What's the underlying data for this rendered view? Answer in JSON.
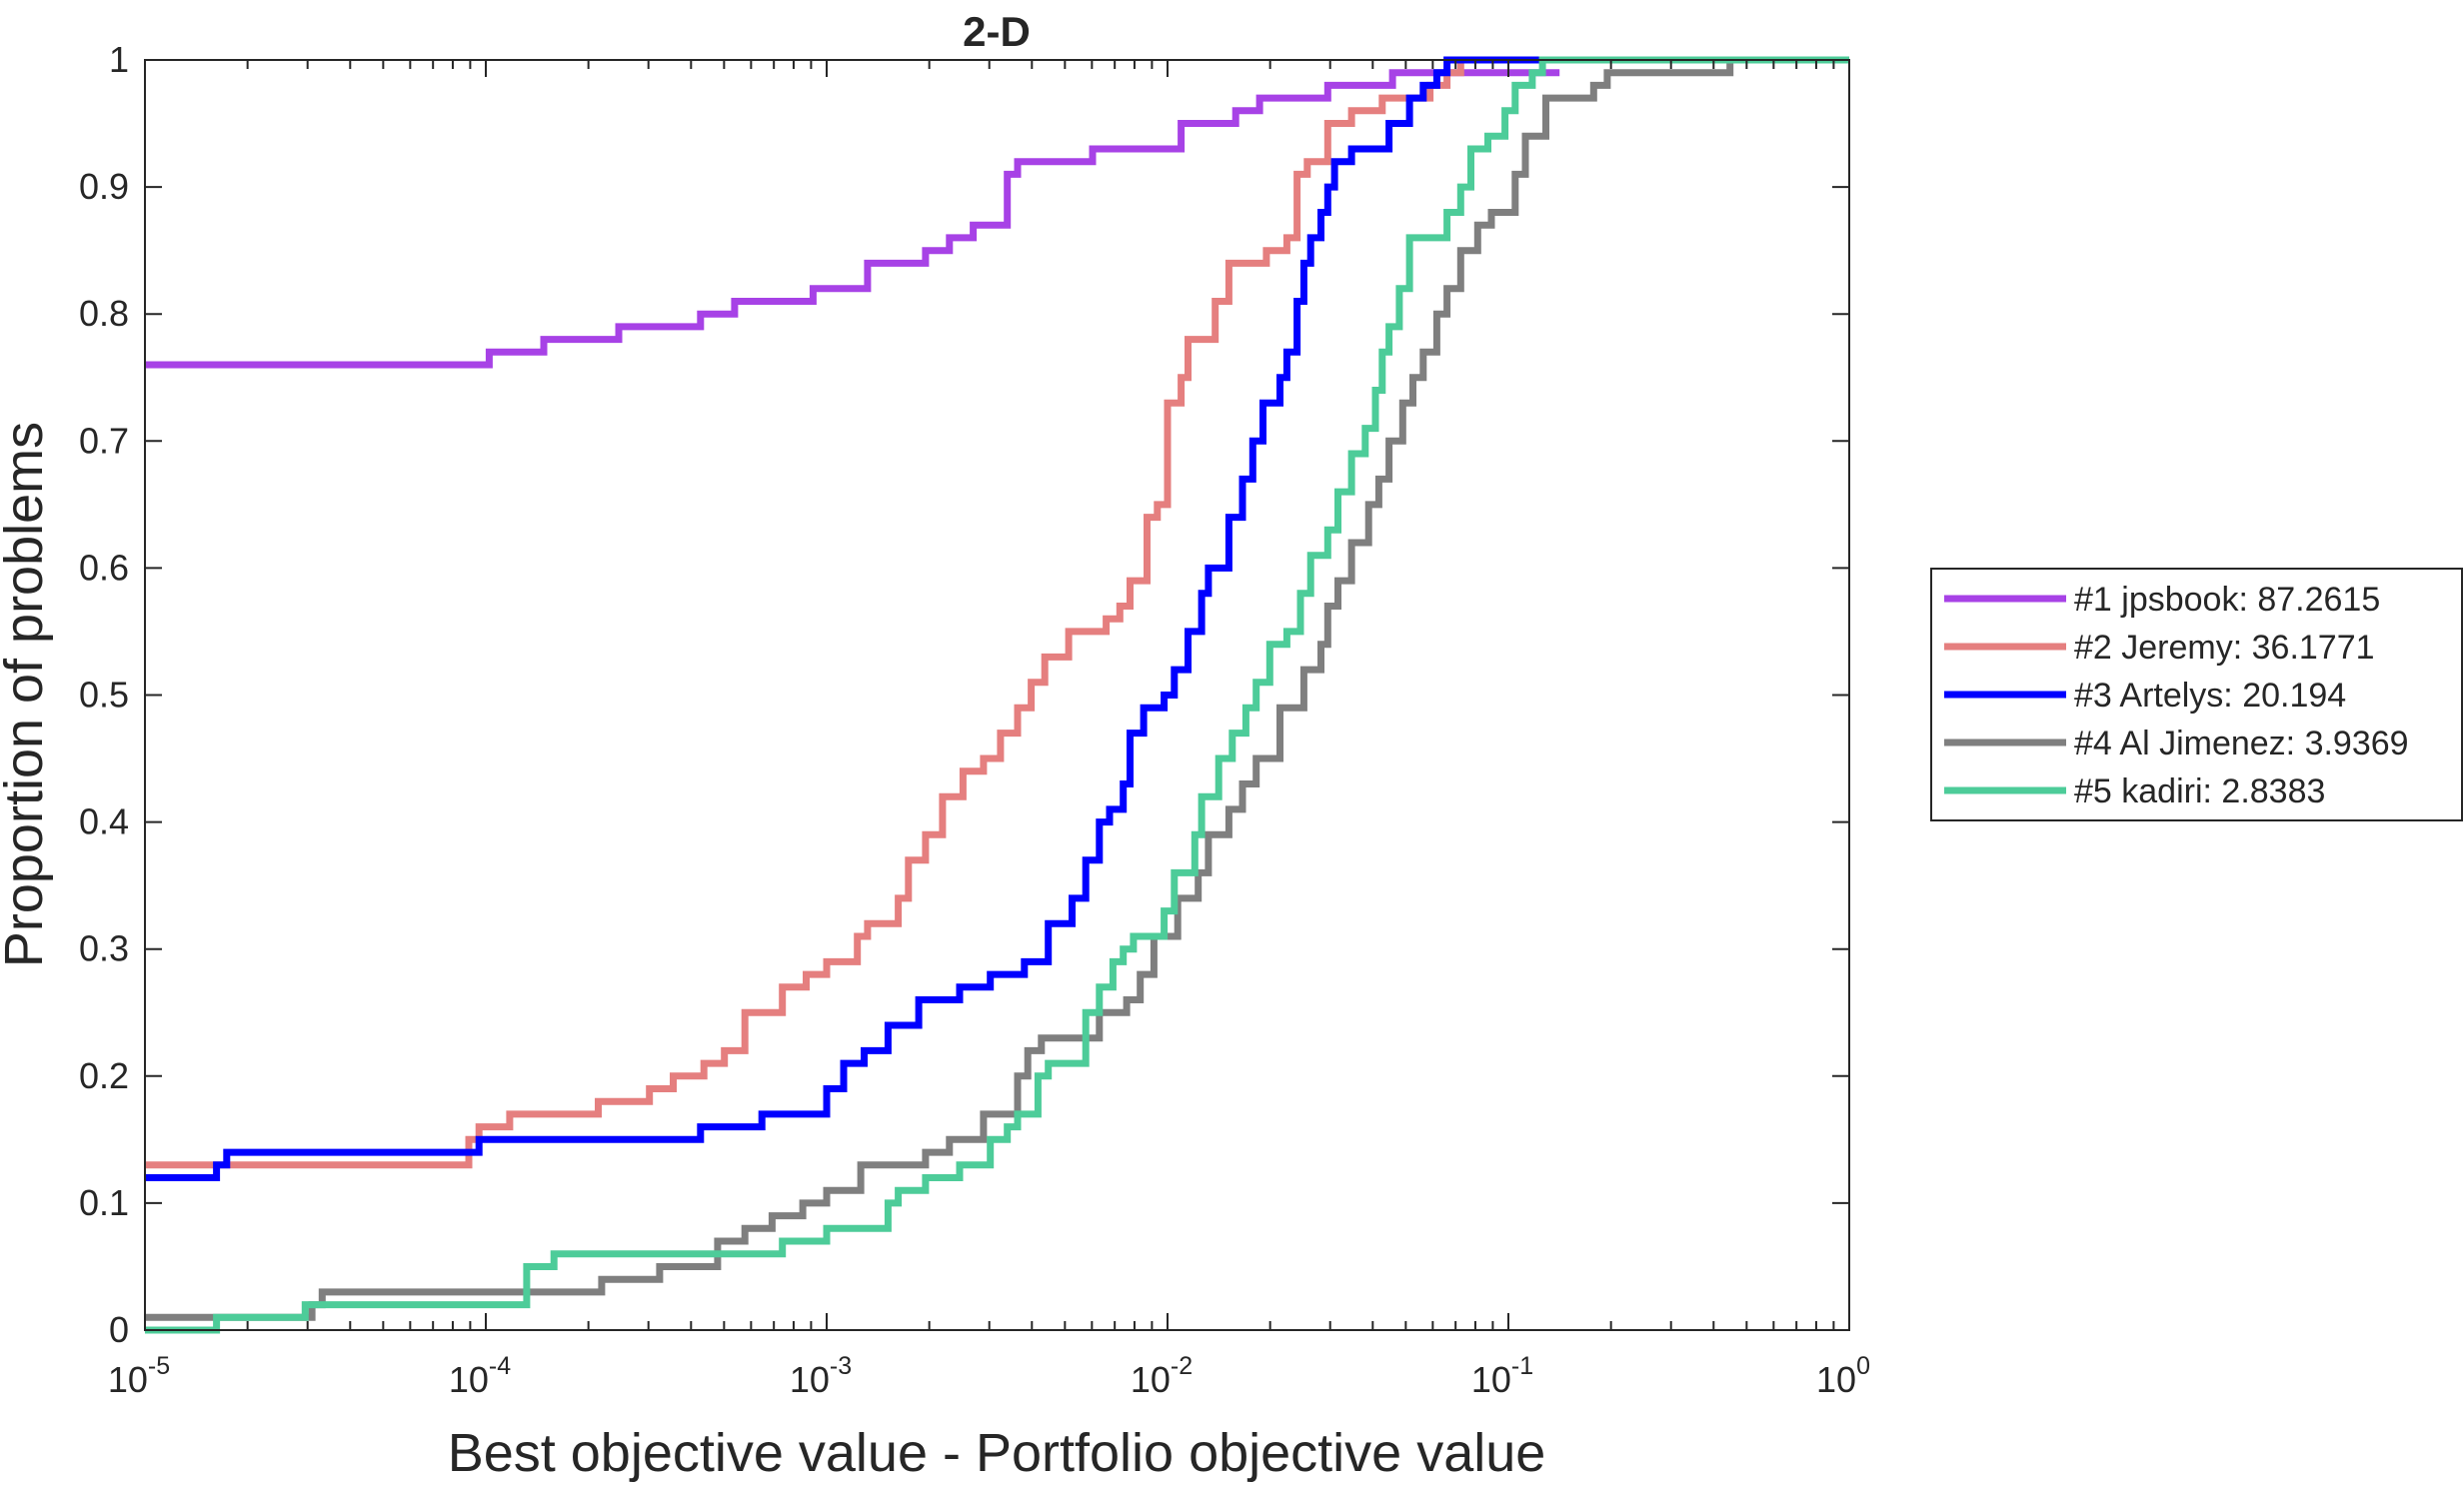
{
  "chart_data": {
    "type": "line",
    "title": "2-D",
    "xlabel": "Best objective value - Portfolio objective value",
    "ylabel": "Proportion of problems",
    "xscale": "log",
    "xlim_log10": [
      -5,
      0
    ],
    "ylim": [
      0,
      1
    ],
    "xticks": [
      {
        "base": "10",
        "exp": "-5",
        "log10": -5
      },
      {
        "base": "10",
        "exp": "-4",
        "log10": -4
      },
      {
        "base": "10",
        "exp": "-3",
        "log10": -3
      },
      {
        "base": "10",
        "exp": "-2",
        "log10": -2
      },
      {
        "base": "10",
        "exp": "-1",
        "log10": -1
      },
      {
        "base": "10",
        "exp": "0",
        "log10": 0
      }
    ],
    "yticks": [
      "0",
      "0.1",
      "0.2",
      "0.3",
      "0.4",
      "0.5",
      "0.6",
      "0.7",
      "0.8",
      "0.9",
      "1"
    ],
    "grid": false,
    "legend_position": "outside-right",
    "series": [
      {
        "name": "#1 jpsbook: 87.2615",
        "color": "#a742e6",
        "end_log10": -0.85,
        "steps_log10x": [
          [
            -5,
            0.76
          ],
          [
            -3.99,
            0.77
          ],
          [
            -3.83,
            0.78
          ],
          [
            -3.61,
            0.79
          ],
          [
            -3.37,
            0.8
          ],
          [
            -3.27,
            0.81
          ],
          [
            -3.04,
            0.82
          ],
          [
            -2.88,
            0.84
          ],
          [
            -2.71,
            0.85
          ],
          [
            -2.64,
            0.86
          ],
          [
            -2.57,
            0.87
          ],
          [
            -2.47,
            0.91
          ],
          [
            -2.44,
            0.92
          ],
          [
            -2.22,
            0.93
          ],
          [
            -1.96,
            0.95
          ],
          [
            -1.8,
            0.96
          ],
          [
            -1.73,
            0.97
          ],
          [
            -1.53,
            0.98
          ],
          [
            -1.34,
            0.99
          ]
        ]
      },
      {
        "name": "#2 Jeremy: 36.1771",
        "color": "#e57f7f",
        "end_log10": 0,
        "steps_log10x": [
          [
            -5,
            0.13
          ],
          [
            -4.41,
            0.13
          ],
          [
            -4.05,
            0.15
          ],
          [
            -4.02,
            0.16
          ],
          [
            -3.93,
            0.17
          ],
          [
            -3.67,
            0.18
          ],
          [
            -3.52,
            0.19
          ],
          [
            -3.45,
            0.2
          ],
          [
            -3.36,
            0.21
          ],
          [
            -3.3,
            0.22
          ],
          [
            -3.24,
            0.25
          ],
          [
            -3.13,
            0.27
          ],
          [
            -3.06,
            0.28
          ],
          [
            -3.0,
            0.29
          ],
          [
            -2.91,
            0.31
          ],
          [
            -2.88,
            0.32
          ],
          [
            -2.79,
            0.34
          ],
          [
            -2.76,
            0.37
          ],
          [
            -2.71,
            0.39
          ],
          [
            -2.66,
            0.42
          ],
          [
            -2.6,
            0.44
          ],
          [
            -2.54,
            0.45
          ],
          [
            -2.49,
            0.47
          ],
          [
            -2.44,
            0.49
          ],
          [
            -2.4,
            0.51
          ],
          [
            -2.36,
            0.53
          ],
          [
            -2.29,
            0.55
          ],
          [
            -2.18,
            0.56
          ],
          [
            -2.14,
            0.57
          ],
          [
            -2.11,
            0.59
          ],
          [
            -2.06,
            0.64
          ],
          [
            -2.03,
            0.65
          ],
          [
            -2.0,
            0.73
          ],
          [
            -1.96,
            0.75
          ],
          [
            -1.94,
            0.78
          ],
          [
            -1.86,
            0.81
          ],
          [
            -1.82,
            0.84
          ],
          [
            -1.71,
            0.85
          ],
          [
            -1.65,
            0.86
          ],
          [
            -1.62,
            0.91
          ],
          [
            -1.59,
            0.92
          ],
          [
            -1.53,
            0.95
          ],
          [
            -1.46,
            0.96
          ],
          [
            -1.37,
            0.97
          ],
          [
            -1.23,
            0.98
          ],
          [
            -1.18,
            0.99
          ],
          [
            -1.14,
            1.0
          ]
        ]
      },
      {
        "name": "#3 Artelys: 20.194",
        "color": "#0000ff",
        "end_log10": 0,
        "steps_log10x": [
          [
            -5,
            0.12
          ],
          [
            -4.79,
            0.13
          ],
          [
            -4.76,
            0.14
          ],
          [
            -4.02,
            0.15
          ],
          [
            -3.37,
            0.16
          ],
          [
            -3.19,
            0.17
          ],
          [
            -3.0,
            0.19
          ],
          [
            -2.95,
            0.21
          ],
          [
            -2.89,
            0.22
          ],
          [
            -2.82,
            0.24
          ],
          [
            -2.73,
            0.26
          ],
          [
            -2.61,
            0.27
          ],
          [
            -2.52,
            0.28
          ],
          [
            -2.42,
            0.29
          ],
          [
            -2.35,
            0.32
          ],
          [
            -2.28,
            0.34
          ],
          [
            -2.24,
            0.37
          ],
          [
            -2.2,
            0.4
          ],
          [
            -2.17,
            0.41
          ],
          [
            -2.13,
            0.43
          ],
          [
            -2.11,
            0.47
          ],
          [
            -2.07,
            0.49
          ],
          [
            -2.01,
            0.5
          ],
          [
            -1.98,
            0.52
          ],
          [
            -1.94,
            0.55
          ],
          [
            -1.9,
            0.58
          ],
          [
            -1.88,
            0.6
          ],
          [
            -1.82,
            0.64
          ],
          [
            -1.78,
            0.67
          ],
          [
            -1.75,
            0.7
          ],
          [
            -1.72,
            0.73
          ],
          [
            -1.67,
            0.75
          ],
          [
            -1.65,
            0.77
          ],
          [
            -1.62,
            0.81
          ],
          [
            -1.6,
            0.84
          ],
          [
            -1.58,
            0.86
          ],
          [
            -1.55,
            0.88
          ],
          [
            -1.53,
            0.9
          ],
          [
            -1.51,
            0.92
          ],
          [
            -1.46,
            0.93
          ],
          [
            -1.35,
            0.95
          ],
          [
            -1.29,
            0.97
          ],
          [
            -1.25,
            0.98
          ],
          [
            -1.21,
            0.99
          ],
          [
            -1.18,
            1.0
          ]
        ]
      },
      {
        "name": "#4 Al Jimenez: 3.9369",
        "color": "#7f7f7f",
        "end_log10": 0,
        "steps_log10x": [
          [
            -5,
            0.01
          ],
          [
            -4.51,
            0.02
          ],
          [
            -4.48,
            0.03
          ],
          [
            -3.66,
            0.04
          ],
          [
            -3.49,
            0.05
          ],
          [
            -3.32,
            0.07
          ],
          [
            -3.24,
            0.08
          ],
          [
            -3.16,
            0.09
          ],
          [
            -3.07,
            0.1
          ],
          [
            -3.0,
            0.11
          ],
          [
            -2.9,
            0.13
          ],
          [
            -2.71,
            0.14
          ],
          [
            -2.64,
            0.15
          ],
          [
            -2.54,
            0.17
          ],
          [
            -2.44,
            0.2
          ],
          [
            -2.41,
            0.22
          ],
          [
            -2.37,
            0.23
          ],
          [
            -2.2,
            0.25
          ],
          [
            -2.12,
            0.26
          ],
          [
            -2.08,
            0.28
          ],
          [
            -2.04,
            0.31
          ],
          [
            -1.97,
            0.34
          ],
          [
            -1.91,
            0.36
          ],
          [
            -1.88,
            0.39
          ],
          [
            -1.82,
            0.41
          ],
          [
            -1.78,
            0.43
          ],
          [
            -1.74,
            0.45
          ],
          [
            -1.67,
            0.49
          ],
          [
            -1.6,
            0.52
          ],
          [
            -1.55,
            0.54
          ],
          [
            -1.53,
            0.57
          ],
          [
            -1.5,
            0.59
          ],
          [
            -1.46,
            0.62
          ],
          [
            -1.41,
            0.65
          ],
          [
            -1.38,
            0.67
          ],
          [
            -1.35,
            0.7
          ],
          [
            -1.31,
            0.73
          ],
          [
            -1.28,
            0.75
          ],
          [
            -1.25,
            0.77
          ],
          [
            -1.21,
            0.8
          ],
          [
            -1.18,
            0.82
          ],
          [
            -1.14,
            0.85
          ],
          [
            -1.09,
            0.87
          ],
          [
            -1.05,
            0.88
          ],
          [
            -0.98,
            0.91
          ],
          [
            -0.95,
            0.94
          ],
          [
            -0.89,
            0.97
          ],
          [
            -0.75,
            0.98
          ],
          [
            -0.71,
            0.99
          ],
          [
            -0.35,
            1.0
          ]
        ]
      },
      {
        "name": "#5 kadiri: 2.8383",
        "color": "#4dcc99",
        "end_log10": 0,
        "steps_log10x": [
          [
            -5,
            0.0
          ],
          [
            -4.79,
            0.01
          ],
          [
            -4.53,
            0.02
          ],
          [
            -3.88,
            0.05
          ],
          [
            -3.8,
            0.06
          ],
          [
            -3.13,
            0.07
          ],
          [
            -3.0,
            0.08
          ],
          [
            -2.82,
            0.1
          ],
          [
            -2.79,
            0.11
          ],
          [
            -2.71,
            0.12
          ],
          [
            -2.61,
            0.13
          ],
          [
            -2.52,
            0.15
          ],
          [
            -2.47,
            0.16
          ],
          [
            -2.44,
            0.17
          ],
          [
            -2.38,
            0.2
          ],
          [
            -2.35,
            0.21
          ],
          [
            -2.24,
            0.25
          ],
          [
            -2.2,
            0.27
          ],
          [
            -2.16,
            0.29
          ],
          [
            -2.13,
            0.3
          ],
          [
            -2.1,
            0.31
          ],
          [
            -2.01,
            0.33
          ],
          [
            -1.98,
            0.36
          ],
          [
            -1.92,
            0.39
          ],
          [
            -1.9,
            0.42
          ],
          [
            -1.85,
            0.45
          ],
          [
            -1.81,
            0.47
          ],
          [
            -1.77,
            0.49
          ],
          [
            -1.74,
            0.51
          ],
          [
            -1.7,
            0.54
          ],
          [
            -1.65,
            0.55
          ],
          [
            -1.61,
            0.58
          ],
          [
            -1.58,
            0.61
          ],
          [
            -1.53,
            0.63
          ],
          [
            -1.5,
            0.66
          ],
          [
            -1.46,
            0.69
          ],
          [
            -1.42,
            0.71
          ],
          [
            -1.39,
            0.74
          ],
          [
            -1.37,
            0.77
          ],
          [
            -1.35,
            0.79
          ],
          [
            -1.32,
            0.82
          ],
          [
            -1.29,
            0.86
          ],
          [
            -1.18,
            0.88
          ],
          [
            -1.14,
            0.9
          ],
          [
            -1.11,
            0.93
          ],
          [
            -1.06,
            0.94
          ],
          [
            -1.01,
            0.96
          ],
          [
            -0.98,
            0.98
          ],
          [
            -0.93,
            0.99
          ],
          [
            -0.9,
            1.0
          ]
        ]
      }
    ],
    "draw_order": [
      0,
      1,
      3,
      2,
      4
    ]
  }
}
